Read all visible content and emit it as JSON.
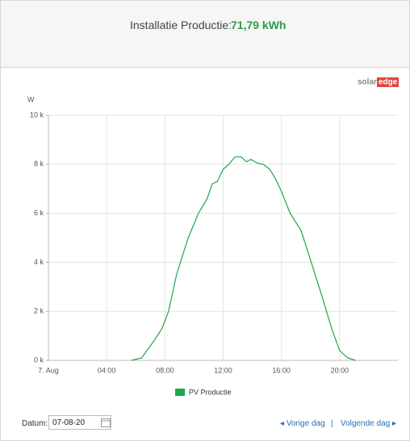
{
  "header": {
    "label": "Installatie Productie:",
    "value": "71,79 kWh"
  },
  "logo": {
    "solar": "solar",
    "edge": "edge"
  },
  "chart_data": {
    "type": "line",
    "y_label": "W",
    "x": [
      5.7,
      6.4,
      7.25,
      7.8,
      8.25,
      8.8,
      9.6,
      10.3,
      10.9,
      11.25,
      11.6,
      12.0,
      12.4,
      12.8,
      13.25,
      13.6,
      13.9,
      14.35,
      14.75,
      15.2,
      15.6,
      16.0,
      16.6,
      17.35,
      18.05,
      18.9,
      19.45,
      20.0,
      20.55,
      21.1
    ],
    "series": [
      {
        "name": "PV Productie",
        "color": "#1fa64a",
        "values": [
          0,
          100,
          800,
          1300,
          2000,
          3500,
          5000,
          6000,
          6600,
          7200,
          7300,
          7800,
          8000,
          8300,
          8300,
          8100,
          8200,
          8050,
          8000,
          7800,
          7400,
          6900,
          6000,
          5300,
          4000,
          2400,
          1300,
          400,
          100,
          0
        ]
      }
    ],
    "xlim": [
      0,
      24
    ],
    "xticks": [
      {
        "value": 0,
        "label": "7. Aug"
      },
      {
        "value": 4,
        "label": "04:00"
      },
      {
        "value": 8,
        "label": "08:00"
      },
      {
        "value": 12,
        "label": "12:00"
      },
      {
        "value": 16,
        "label": "16:00"
      },
      {
        "value": 20,
        "label": "20:00"
      }
    ],
    "ylim": [
      0,
      10000
    ],
    "yticks": [
      {
        "value": 0,
        "label": "0 k"
      },
      {
        "value": 2000,
        "label": "2 k"
      },
      {
        "value": 4000,
        "label": "4 k"
      },
      {
        "value": 6000,
        "label": "6 k"
      },
      {
        "value": 8000,
        "label": "8 k"
      },
      {
        "value": 10000,
        "label": "10 k"
      }
    ],
    "grid": true
  },
  "footer": {
    "date_label": "Datum:",
    "date": "07-08-20",
    "prev": "Vorige dag",
    "separator": "|",
    "next": "Volgende dag"
  }
}
